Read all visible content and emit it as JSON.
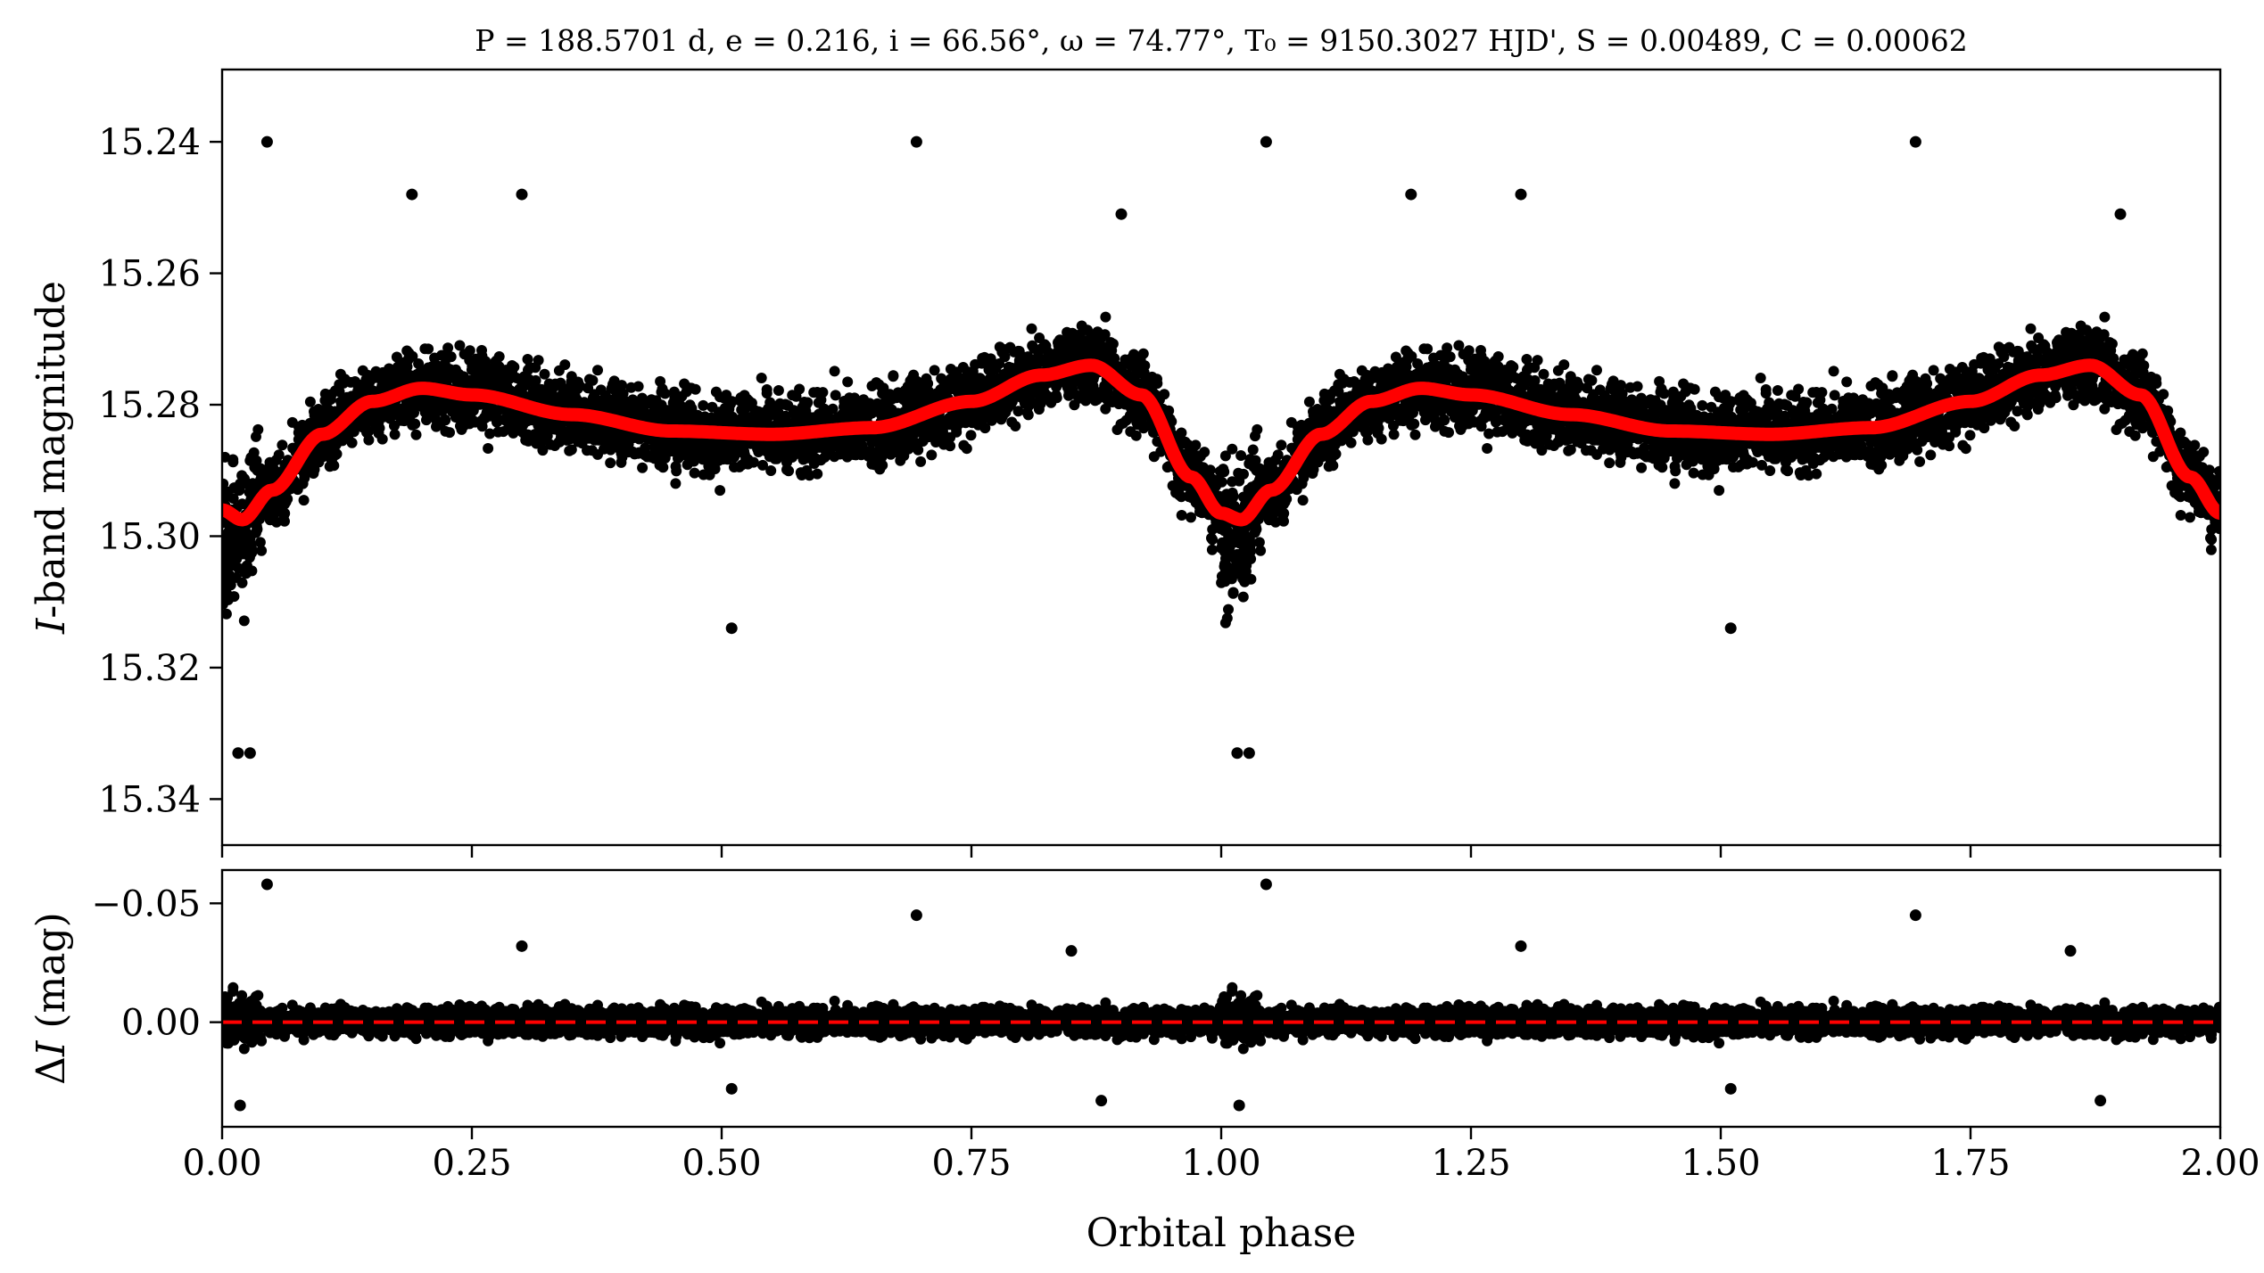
{
  "chart_data": [
    {
      "type": "scatter",
      "panel": "top",
      "title": "P = 188.5701 d, e = 0.216, i = 66.56°, ω = 74.77°, T₀ = 9150.3027 HJD', S = 0.00489, C = 0.00062",
      "xlabel": "",
      "ylabel": "I-band magnitude",
      "xlim": [
        0.0,
        2.0
      ],
      "ylim": [
        15.347,
        15.229
      ],
      "y_inverted": true,
      "y_ticks": [
        "15.24",
        "15.26",
        "15.28",
        "15.30",
        "15.32",
        "15.34"
      ],
      "x_ticks": [
        "0.00",
        "0.25",
        "0.50",
        "0.75",
        "1.00",
        "1.25",
        "1.50",
        "1.75",
        "2.00"
      ],
      "grid": false,
      "series": [
        {
          "kind": "points",
          "color": "#000000",
          "description_values": "phase-folded photometry, mean level ~15.283 mag, scatter ~0.008 mag, repeated twice over 0–2 in phase",
          "outliers": [
            {
              "x": 0.045,
              "y": 15.24
            },
            {
              "x": 0.695,
              "y": 15.24
            },
            {
              "x": 0.19,
              "y": 15.248
            },
            {
              "x": 0.3,
              "y": 15.248
            },
            {
              "x": 0.9,
              "y": 15.251
            },
            {
              "x": 0.51,
              "y": 15.314
            },
            {
              "x": 0.016,
              "y": 15.333
            },
            {
              "x": 0.028,
              "y": 15.333
            },
            {
              "x": 1.045,
              "y": 15.24
            },
            {
              "x": 1.695,
              "y": 15.24
            },
            {
              "x": 1.19,
              "y": 15.248
            },
            {
              "x": 1.3,
              "y": 15.248
            },
            {
              "x": 1.9,
              "y": 15.251
            },
            {
              "x": 1.51,
              "y": 15.314
            },
            {
              "x": 1.016,
              "y": 15.333
            },
            {
              "x": 1.028,
              "y": 15.333
            }
          ]
        },
        {
          "kind": "model",
          "color": "#ff0000",
          "x": [
            0.0,
            0.02,
            0.05,
            0.1,
            0.15,
            0.2,
            0.25,
            0.35,
            0.45,
            0.55,
            0.65,
            0.75,
            0.82,
            0.87,
            0.92,
            0.97,
            1.0,
            1.02,
            1.05,
            1.1,
            1.15,
            1.2,
            1.25,
            1.35,
            1.45,
            1.55,
            1.65,
            1.75,
            1.82,
            1.87,
            1.92,
            1.97,
            2.0
          ],
          "values": [
            15.296,
            15.2975,
            15.293,
            15.2845,
            15.2795,
            15.2775,
            15.2785,
            15.2815,
            15.284,
            15.2845,
            15.2835,
            15.2795,
            15.2755,
            15.274,
            15.2785,
            15.291,
            15.2965,
            15.2975,
            15.293,
            15.2845,
            15.2795,
            15.2775,
            15.2785,
            15.2815,
            15.284,
            15.2845,
            15.2835,
            15.2795,
            15.2755,
            15.274,
            15.2785,
            15.291,
            15.2965
          ]
        }
      ]
    },
    {
      "type": "scatter",
      "panel": "bottom",
      "xlabel": "Orbital phase",
      "ylabel": "ΔI (mag)",
      "xlim": [
        0.0,
        2.0
      ],
      "ylim": [
        0.044,
        -0.064
      ],
      "y_inverted": true,
      "y_ticks": [
        "−0.05",
        "0.00"
      ],
      "x_ticks": [
        "0.00",
        "0.25",
        "0.50",
        "0.75",
        "1.00",
        "1.25",
        "1.50",
        "1.75",
        "2.00"
      ],
      "grid": false,
      "reference_line": {
        "y": 0.0,
        "color": "#ff0000",
        "style": "dashed"
      },
      "series": [
        {
          "kind": "residuals",
          "color": "#000000",
          "outliers": [
            {
              "x": 0.045,
              "y": -0.058
            },
            {
              "x": 0.695,
              "y": -0.045
            },
            {
              "x": 0.3,
              "y": -0.032
            },
            {
              "x": 0.85,
              "y": -0.03
            },
            {
              "x": 0.51,
              "y": 0.028
            },
            {
              "x": 0.018,
              "y": 0.035
            },
            {
              "x": 0.88,
              "y": 0.033
            },
            {
              "x": 1.045,
              "y": -0.058
            },
            {
              "x": 1.695,
              "y": -0.045
            },
            {
              "x": 1.3,
              "y": -0.032
            },
            {
              "x": 1.85,
              "y": -0.03
            },
            {
              "x": 1.51,
              "y": 0.028
            },
            {
              "x": 1.018,
              "y": 0.035
            },
            {
              "x": 1.88,
              "y": 0.033
            }
          ]
        }
      ]
    }
  ]
}
